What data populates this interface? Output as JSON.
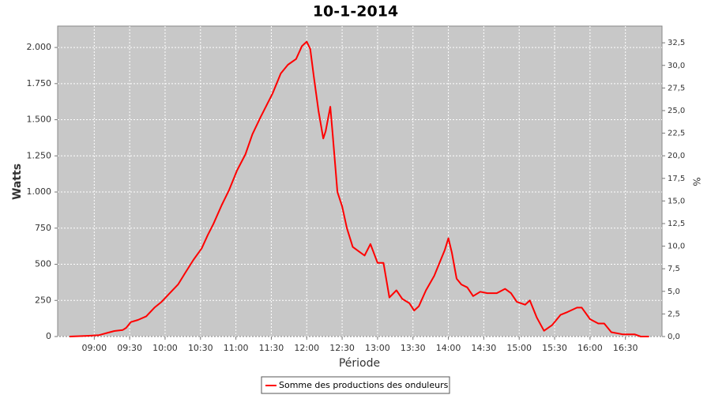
{
  "chart_data": {
    "type": "line",
    "title": "10-1-2014",
    "xlabel": "Période",
    "ylabel": "Watts",
    "y2label": "%",
    "x": [
      "08:39",
      "08:54",
      "09:04",
      "09:11",
      "09:17",
      "09:24",
      "09:27",
      "09:31",
      "09:37",
      "09:44",
      "09:51",
      "09:57",
      "10:04",
      "10:11",
      "10:17",
      "10:24",
      "10:31",
      "10:36",
      "10:41",
      "10:48",
      "10:54",
      "11:01",
      "11:08",
      "11:14",
      "11:21",
      "11:31",
      "11:38",
      "11:44",
      "11:51",
      "11:56",
      "12:00",
      "12:03",
      "12:06",
      "12:10",
      "12:14",
      "12:16",
      "12:20",
      "12:22",
      "12:26",
      "12:30",
      "12:34",
      "12:39",
      "12:44",
      "12:49",
      "12:54",
      "13:00",
      "13:05",
      "13:10",
      "13:16",
      "13:21",
      "13:27",
      "13:31",
      "13:35",
      "13:41",
      "13:48",
      "13:53",
      "13:57",
      "14:00",
      "14:03",
      "14:07",
      "14:11",
      "14:16",
      "14:21",
      "14:27",
      "14:33",
      "14:41",
      "14:48",
      "14:53",
      "14:58",
      "15:05",
      "15:09",
      "15:15",
      "15:21",
      "15:28",
      "15:35",
      "15:41",
      "15:49",
      "15:53",
      "16:00",
      "16:07",
      "16:12",
      "16:18",
      "16:28",
      "16:38",
      "16:43",
      "16:50"
    ],
    "series": [
      {
        "name": "Somme des productions des onduleurs",
        "color": "#ff0000",
        "values": [
          0,
          5,
          10,
          25,
          38,
          45,
          60,
          100,
          115,
          140,
          200,
          240,
          300,
          360,
          440,
          530,
          610,
          700,
          780,
          910,
          1010,
          1150,
          1260,
          1400,
          1520,
          1680,
          1820,
          1880,
          1920,
          2010,
          2040,
          1990,
          1800,
          1560,
          1370,
          1420,
          1590,
          1400,
          1000,
          900,
          750,
          620,
          590,
          560,
          640,
          510,
          510,
          270,
          320,
          260,
          230,
          180,
          210,
          320,
          420,
          520,
          600,
          680,
          580,
          400,
          360,
          340,
          280,
          310,
          300,
          300,
          330,
          300,
          240,
          220,
          250,
          130,
          40,
          80,
          150,
          170,
          200,
          200,
          120,
          90,
          90,
          30,
          15,
          15,
          0,
          0
        ]
      }
    ],
    "xlim": [
      "08:29",
      "17:01"
    ],
    "xticks": [
      "09:00",
      "09:30",
      "10:00",
      "10:30",
      "11:00",
      "11:30",
      "12:00",
      "12:30",
      "13:00",
      "13:30",
      "14:00",
      "14:30",
      "15:00",
      "15:30",
      "16:00",
      "16:30"
    ],
    "ylim": [
      0,
      2148
    ],
    "yticks": [
      0,
      250,
      500,
      750,
      {
        "value": 1000,
        "label": "1.000"
      },
      {
        "value": 1250,
        "label": "1.250"
      },
      {
        "value": 1500,
        "label": "1.500"
      },
      {
        "value": 1750,
        "label": "1.750"
      },
      {
        "value": 2000,
        "label": "2.000"
      }
    ],
    "y2lim": [
      0,
      34.35
    ],
    "y2ticks": [
      {
        "value": 0,
        "label": "0,0"
      },
      {
        "value": 2.5,
        "label": "2,5"
      },
      {
        "value": 5,
        "label": "5,0"
      },
      {
        "value": 7.5,
        "label": "7,5"
      },
      {
        "value": 10,
        "label": "10,0"
      },
      {
        "value": 12.5,
        "label": "12,5"
      },
      {
        "value": 15,
        "label": "15,0"
      },
      {
        "value": 17.5,
        "label": "17,5"
      },
      {
        "value": 20,
        "label": "20,0"
      },
      {
        "value": 22.5,
        "label": "22,5"
      },
      {
        "value": 25,
        "label": "25,0"
      },
      {
        "value": 27.5,
        "label": "27,5"
      },
      {
        "value": 30,
        "label": "30,0"
      },
      {
        "value": 32.5,
        "label": "32,5"
      }
    ],
    "grid": true,
    "plot_background": "#c8c8c8",
    "legend": "bottom"
  }
}
